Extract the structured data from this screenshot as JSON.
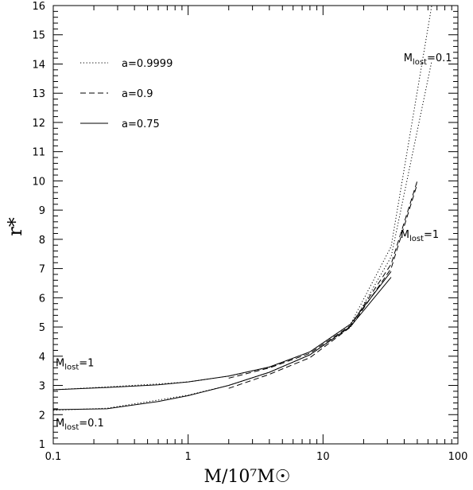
{
  "chart_data": {
    "type": "line",
    "xscale": "log",
    "xlim": [
      0.1,
      100
    ],
    "ylim": [
      1,
      16
    ],
    "xlabel": "M/10⁷M☉",
    "ylabel": "r*",
    "x_ticks": [
      "0.1",
      "1",
      "10",
      "100"
    ],
    "y_ticks": [
      "1",
      "2",
      "3",
      "4",
      "5",
      "6",
      "7",
      "8",
      "9",
      "10",
      "11",
      "12",
      "13",
      "14",
      "15",
      "16"
    ],
    "legend_position": "top-left",
    "annotations": [
      {
        "text": "M",
        "sub": "lost",
        "rest": "=0.1",
        "at": [
          38,
          14.1
        ]
      },
      {
        "text": "M",
        "sub": "lost",
        "rest": "=1",
        "at": [
          36,
          8.05
        ]
      },
      {
        "text": "M",
        "sub": "lost",
        "rest": "=1",
        "at": [
          0.1,
          3.65
        ]
      },
      {
        "text": "M",
        "sub": "lost",
        "rest": "=0.1",
        "at": [
          0.1,
          1.6
        ]
      }
    ],
    "series": [
      {
        "name": "a=0.9999",
        "style": "dotted",
        "lines": [
          {
            "x": [
              0.1,
              0.25,
              0.6,
              1,
              2,
              4,
              8,
              16,
              32,
              64
            ],
            "y": [
              2.85,
              2.95,
              3.05,
              3.12,
              3.32,
              3.62,
              4.15,
              5.1,
              7.75,
              16.0
            ]
          },
          {
            "x": [
              0.1,
              0.25,
              0.6,
              1,
              2,
              4,
              8,
              16,
              32,
              64
            ],
            "y": [
              2.15,
              2.22,
              2.5,
              2.67,
              3.0,
              3.45,
              4.05,
              5.0,
              7.4,
              14.1
            ]
          }
        ]
      },
      {
        "name": "a=0.9",
        "style": "dashed",
        "lines": [
          {
            "x": [
              2,
              4,
              8,
              16,
              32,
              50
            ],
            "y": [
              3.25,
              3.6,
              4.1,
              5.05,
              7.15,
              10.0
            ]
          },
          {
            "x": [
              2,
              4,
              8,
              16,
              32,
              50
            ],
            "y": [
              2.9,
              3.38,
              3.95,
              5.0,
              7.0,
              9.9
            ]
          }
        ]
      },
      {
        "name": "a=0.75",
        "style": "solid",
        "lines": [
          {
            "x": [
              0.1,
              0.25,
              0.6,
              1,
              2,
              4,
              8,
              16,
              32
            ],
            "y": [
              2.85,
              2.93,
              3.02,
              3.12,
              3.32,
              3.63,
              4.15,
              5.1,
              6.9
            ]
          },
          {
            "x": [
              0.1,
              0.25,
              0.6,
              1,
              2,
              4,
              8,
              16,
              32
            ],
            "y": [
              2.17,
              2.2,
              2.45,
              2.65,
              3.0,
              3.45,
              4.05,
              5.02,
              6.7
            ]
          }
        ]
      }
    ]
  }
}
